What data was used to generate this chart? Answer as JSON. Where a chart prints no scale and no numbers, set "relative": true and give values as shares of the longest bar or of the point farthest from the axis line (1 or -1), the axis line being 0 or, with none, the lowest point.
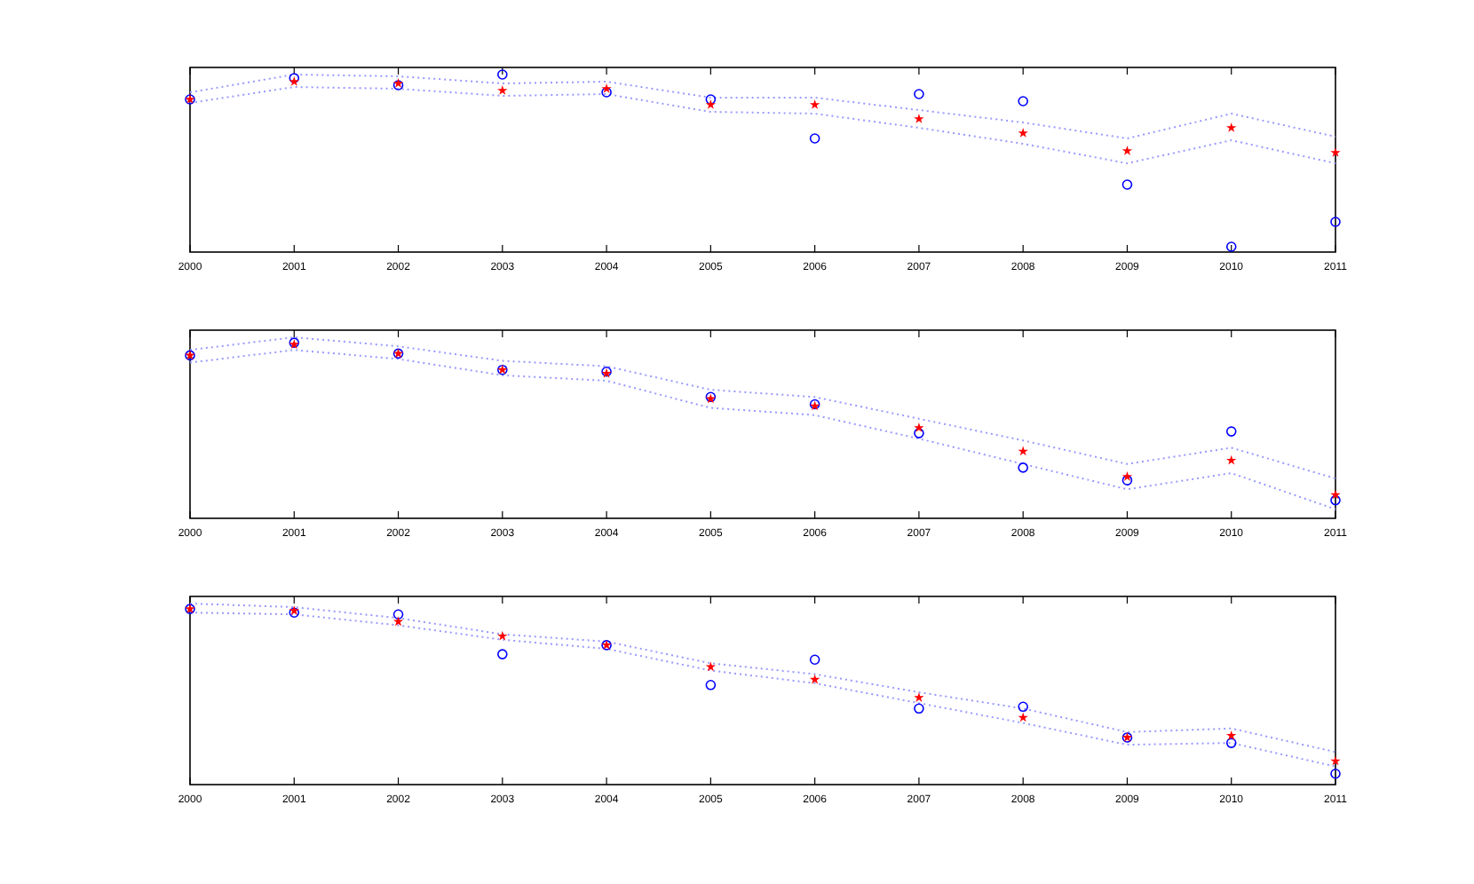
{
  "chart_data": [
    {
      "type": "scatter",
      "relative": true,
      "x": [
        2000,
        2001,
        2002,
        2003,
        2004,
        2005,
        2006,
        2007,
        2008,
        2009,
        2010,
        2011
      ],
      "xlim": [
        2000,
        2011
      ],
      "xticks": [
        2000,
        2001,
        2002,
        2003,
        2004,
        2005,
        2006,
        2007,
        2008,
        2009,
        2010,
        2011
      ],
      "tick_labels": "x",
      "grid": false,
      "series": [
        {
          "type": "line",
          "color": "#9999ff",
          "line_style": "dotted",
          "marker": "none",
          "values": [
            0.9,
            1.0,
            0.99,
            0.95,
            0.96,
            0.87,
            0.87,
            0.8,
            0.73,
            0.64,
            0.78,
            0.65
          ]
        },
        {
          "type": "line",
          "color": "#9999ff",
          "line_style": "dotted",
          "marker": "none",
          "values": [
            0.84,
            0.93,
            0.92,
            0.88,
            0.89,
            0.79,
            0.78,
            0.7,
            0.61,
            0.5,
            0.63,
            0.5
          ]
        },
        {
          "color": "#0000ff",
          "marker": "circle",
          "values": [
            0.86,
            0.98,
            0.94,
            1.0,
            0.9,
            0.86,
            0.64,
            0.89,
            0.85,
            0.38,
            0.03,
            0.17
          ]
        },
        {
          "color": "#ff0000",
          "marker": "star",
          "values": [
            0.86,
            0.96,
            0.95,
            0.91,
            0.92,
            0.83,
            0.83,
            0.75,
            0.67,
            0.57,
            0.7,
            0.56
          ]
        }
      ]
    },
    {
      "type": "scatter",
      "relative": true,
      "x": [
        2000,
        2001,
        2002,
        2003,
        2004,
        2005,
        2006,
        2007,
        2008,
        2009,
        2010,
        2011
      ],
      "xlim": [
        2000,
        2011
      ],
      "xticks": [
        2000,
        2001,
        2002,
        2003,
        2004,
        2005,
        2006,
        2007,
        2008,
        2009,
        2010,
        2011
      ],
      "tick_labels": "x",
      "grid": false,
      "series": [
        {
          "type": "line",
          "color": "#9999ff",
          "line_style": "dotted",
          "marker": "none",
          "values": [
            0.93,
            1.0,
            0.95,
            0.87,
            0.84,
            0.71,
            0.67,
            0.55,
            0.43,
            0.3,
            0.39,
            0.22
          ]
        },
        {
          "type": "line",
          "color": "#9999ff",
          "line_style": "dotted",
          "marker": "none",
          "values": [
            0.86,
            0.93,
            0.88,
            0.79,
            0.76,
            0.61,
            0.57,
            0.44,
            0.3,
            0.16,
            0.25,
            0.05
          ]
        },
        {
          "color": "#0000ff",
          "marker": "circle",
          "values": [
            0.9,
            0.97,
            0.91,
            0.82,
            0.81,
            0.67,
            0.63,
            0.47,
            0.28,
            0.21,
            0.48,
            0.1
          ]
        },
        {
          "color": "#ff0000",
          "marker": "star",
          "values": [
            0.9,
            0.96,
            0.91,
            0.82,
            0.8,
            0.66,
            0.62,
            0.5,
            0.37,
            0.23,
            0.32,
            0.13
          ]
        }
      ]
    },
    {
      "type": "scatter",
      "relative": true,
      "x": [
        2000,
        2001,
        2002,
        2003,
        2004,
        2005,
        2006,
        2007,
        2008,
        2009,
        2010,
        2011
      ],
      "xlim": [
        2000,
        2011
      ],
      "xticks": [
        2000,
        2001,
        2002,
        2003,
        2004,
        2005,
        2006,
        2007,
        2008,
        2009,
        2010,
        2011
      ],
      "tick_labels": "x",
      "grid": false,
      "series": [
        {
          "type": "line",
          "color": "#9999ff",
          "line_style": "dotted",
          "marker": "none",
          "values": [
            1.0,
            0.98,
            0.92,
            0.83,
            0.79,
            0.67,
            0.61,
            0.51,
            0.42,
            0.29,
            0.31,
            0.18
          ]
        },
        {
          "type": "line",
          "color": "#9999ff",
          "line_style": "dotted",
          "marker": "none",
          "values": [
            0.95,
            0.94,
            0.88,
            0.8,
            0.75,
            0.63,
            0.56,
            0.45,
            0.34,
            0.22,
            0.23,
            0.1
          ]
        },
        {
          "color": "#0000ff",
          "marker": "circle",
          "values": [
            0.97,
            0.95,
            0.94,
            0.72,
            0.77,
            0.55,
            0.69,
            0.42,
            0.43,
            0.26,
            0.23,
            0.06
          ]
        },
        {
          "color": "#ff0000",
          "marker": "star",
          "values": [
            0.97,
            0.96,
            0.9,
            0.82,
            0.77,
            0.65,
            0.58,
            0.48,
            0.37,
            0.26,
            0.27,
            0.13
          ]
        }
      ]
    }
  ]
}
